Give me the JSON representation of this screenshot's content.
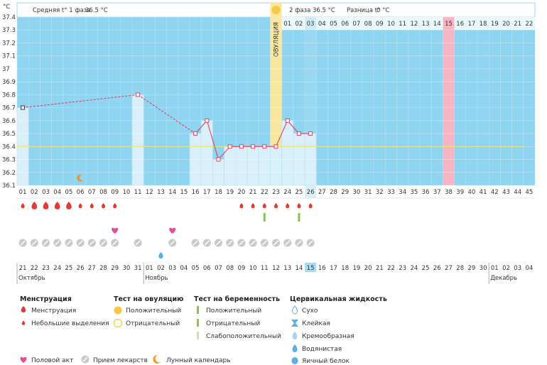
{
  "chart_data": {
    "type": "line",
    "title": "",
    "ylabel": "°C",
    "ylim": [
      36.1,
      37.4
    ],
    "yticks": [
      "37.4",
      "37.3",
      "37.2",
      "37.1",
      "37",
      "36.9",
      "36.8",
      "36.7",
      "36.6",
      "36.5",
      "36.4",
      "36.3",
      "36.2",
      "36.1"
    ],
    "cycle_days": [
      "01",
      "02",
      "03",
      "04",
      "05",
      "06",
      "07",
      "08",
      "09",
      "10",
      "11",
      "12",
      "13",
      "14",
      "15",
      "16",
      "17",
      "18",
      "19",
      "20",
      "21",
      "22",
      "23",
      "24",
      "25",
      "26",
      "27",
      "28",
      "29",
      "30",
      "31",
      "32",
      "33",
      "34",
      "35",
      "36",
      "37",
      "38",
      "39",
      "40",
      "41",
      "42",
      "43",
      "44",
      "45"
    ],
    "temperatures": [
      36.7,
      null,
      null,
      null,
      null,
      null,
      null,
      null,
      null,
      null,
      36.8,
      null,
      null,
      null,
      null,
      36.5,
      36.6,
      36.3,
      36.4,
      36.4,
      36.4,
      36.4,
      36.4,
      36.6,
      36.5,
      36.5,
      null,
      null,
      null,
      null,
      null,
      null,
      null,
      null,
      null,
      null,
      null,
      null,
      null,
      null,
      null,
      null,
      null,
      null,
      null
    ],
    "coverline": 36.4,
    "ovulation_day": 23,
    "today_day": 26,
    "highlight_day": 38,
    "phase2_days": [
      "01",
      "02",
      "03",
      "04",
      "05",
      "06",
      "07",
      "08",
      "09",
      "10",
      "11",
      "12",
      "13",
      "14",
      "15",
      "16",
      "17",
      "18",
      "19",
      "20",
      "21",
      "22"
    ],
    "calendar_dates": [
      "21",
      "22",
      "23",
      "24",
      "25",
      "26",
      "27",
      "28",
      "29",
      "30",
      "31",
      "01",
      "02",
      "03",
      "04",
      "05",
      "06",
      "07",
      "08",
      "09",
      "10",
      "11",
      "12",
      "13",
      "14",
      "15",
      "16",
      "17",
      "18",
      "19",
      "20",
      "21",
      "22",
      "23",
      "24",
      "25",
      "26",
      "27",
      "28",
      "29",
      "30",
      "01",
      "02",
      "03",
      "04"
    ],
    "calendar_red_dates": [
      2,
      3,
      9,
      10,
      16,
      17,
      23,
      24,
      30,
      31,
      37,
      38,
      44,
      45
    ],
    "months": [
      {
        "label": "Октябрь",
        "start_day": 1
      },
      {
        "label": "Ноябрь",
        "start_day": 12
      },
      {
        "label": "Декабрь",
        "start_day": 42
      }
    ],
    "menstruation_big_days": [
      2,
      3,
      4,
      5
    ],
    "menstruation_small_days": [
      1,
      6,
      7,
      8,
      9,
      20,
      21,
      22,
      23,
      24,
      25,
      26
    ],
    "pregnancy_test_days": [
      22,
      25
    ],
    "sex_days": [
      9,
      14
    ],
    "medicine_days": [
      1,
      2,
      3,
      4,
      5,
      6,
      7,
      8,
      9,
      11,
      14,
      16,
      17,
      18,
      19,
      20,
      21,
      22,
      23,
      24,
      25,
      26
    ],
    "moon_day": 6,
    "fluid_day": 13
  },
  "header": {
    "phase1_label": "Средняя t° 1 фаза",
    "phase1_value": "36.5 °C",
    "phase2_label": "2 фаза",
    "phase2_value": "36.5 °C",
    "diff_label": "Разница t°",
    "diff_value": "0 °C"
  },
  "ovulation_label": "ОВУЛЯЦИЯ",
  "colors": {
    "chart_bg": "#8fd4f0",
    "bar_fill": "#d9f0fb",
    "line": "#e4405f",
    "ovulation": "#f9e79f",
    "highlight": "#f6b5c4",
    "today": "#a8dcf0",
    "coverline": "#e8e66e"
  },
  "legend": {
    "menstruation": {
      "title": "Менструация",
      "items": [
        "Менструация",
        "Небольшие выделения"
      ]
    },
    "ovulation_test": {
      "title": "Тест на овуляцию",
      "items": [
        "Положительный",
        "Отрицательный"
      ]
    },
    "pregnancy_test": {
      "title": "Тест на беременность",
      "items": [
        "Положительный",
        "Отрицательный",
        "Слабоположительный"
      ]
    },
    "cervical": {
      "title": "Цервикальная жидкость",
      "items": [
        "Сухо",
        "Клейкая",
        "Кремообразная",
        "Водянистая",
        "Яичный белок"
      ]
    },
    "bottom": [
      "Половой акт",
      "Прием лекарств",
      "Лунный календарь"
    ]
  }
}
